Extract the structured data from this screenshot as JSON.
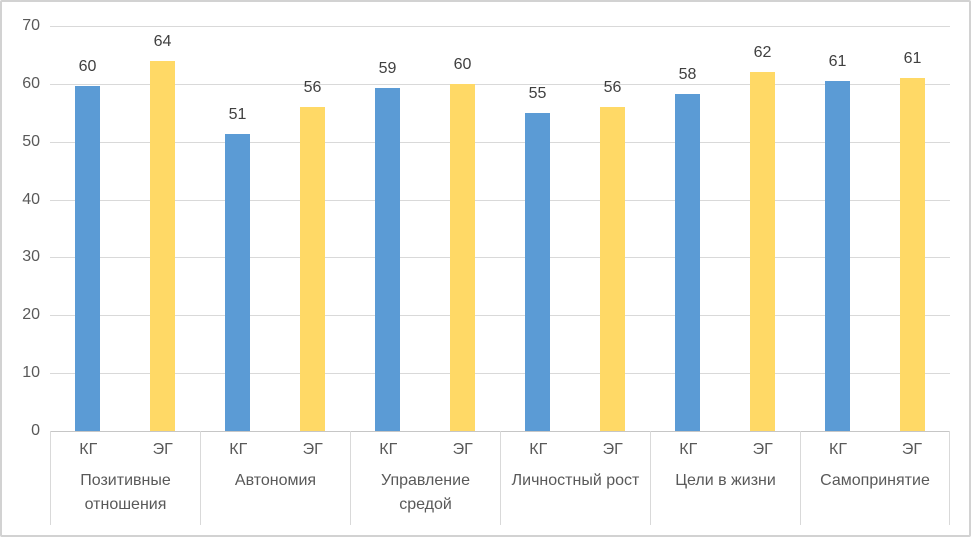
{
  "chart_data": {
    "type": "bar",
    "title": "",
    "xlabel": "",
    "ylabel": "",
    "categories": [
      "Позитивные отношения",
      "Автономия",
      "Управление средой",
      "Личностный рост",
      "Цели в жизни",
      "Самопринятие"
    ],
    "series": [
      {
        "name": "КГ",
        "color": "#5B9BD5",
        "values": [
          60,
          51,
          59,
          55,
          58,
          61
        ],
        "drawn_values": [
          59.6,
          51.3,
          59.3,
          54.9,
          58.2,
          60.5
        ]
      },
      {
        "name": "ЭГ",
        "color": "#FFD966",
        "values": [
          64,
          56,
          60,
          56,
          62,
          61
        ],
        "drawn_values": [
          64,
          56,
          60,
          56,
          62,
          61
        ]
      }
    ],
    "ylim": [
      0,
      70
    ],
    "yticks": [
      0,
      10,
      20,
      30,
      40,
      50,
      60,
      70
    ],
    "grid": true,
    "legend": "none",
    "data_labels": "above bars, rounded integers",
    "axis_style": {
      "gridline_color": "#D9D9D9",
      "axis_line_color": "#C6C6C6",
      "tick_text_color": "#595959",
      "data_label_color": "#404040",
      "outer_border_color": "#D2D2D2"
    }
  }
}
